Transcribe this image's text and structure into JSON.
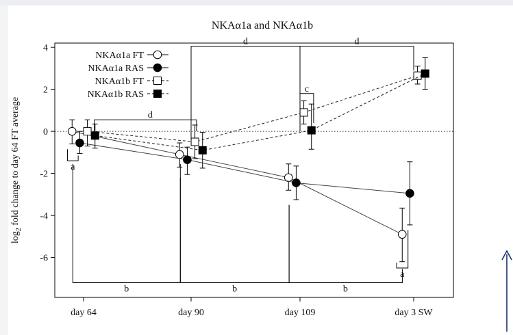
{
  "colors": {
    "background": "#ffffff",
    "ink": "#000000",
    "page_edge": "#eceef1",
    "arrow": "#1a2f6b"
  },
  "chart_data": {
    "type": "line",
    "title": "NKAα1a and NKAα1b",
    "xlabel": "",
    "ylabel": "log2 fold change to day 64 FT average",
    "ylabel_main": "log",
    "ylabel_sub": "2",
    "ylabel_rest": " fold change to day 64 FT average",
    "categories": [
      "day 64",
      "day 90",
      "day 109",
      "day 3 SW"
    ],
    "ylim": [
      -7.9,
      4.2
    ],
    "yticks": [
      4,
      2,
      0,
      -2,
      -4,
      -6
    ],
    "grid": false,
    "reference_line_y": 0,
    "legend_position": "top-left",
    "series": [
      {
        "name": "NKAα1a FT",
        "marker": "circle-open",
        "line": "solid",
        "offset": -0.15,
        "values": [
          0.0,
          -1.1,
          -2.2,
          -4.9
        ],
        "errors": [
          [
            -0.6,
            0.55
          ],
          [
            -1.7,
            -0.55
          ],
          [
            -2.8,
            -1.55
          ],
          [
            -6.2,
            -3.65
          ]
        ]
      },
      {
        "name": "NKAα1a RAS",
        "marker": "circle-filled",
        "line": "solid",
        "offset": -0.05,
        "values": [
          -0.55,
          -1.35,
          -2.45,
          -2.95
        ],
        "errors": [
          [
            -1.05,
            0.0
          ],
          [
            -2.05,
            -0.75
          ],
          [
            -3.25,
            -1.65
          ],
          [
            -4.45,
            -1.45
          ]
        ]
      },
      {
        "name": "NKAα1b FT",
        "marker": "square-open",
        "line": "dashed",
        "offset": 0.05,
        "values": [
          0.0,
          -0.5,
          0.9,
          2.65
        ],
        "errors": [
          [
            -0.7,
            0.55
          ],
          [
            -1.3,
            0.3
          ],
          [
            0.35,
            1.45
          ],
          [
            2.25,
            3.1
          ]
        ]
      },
      {
        "name": "NKAα1b RAS",
        "marker": "square-filled",
        "line": "dashed",
        "offset": 0.15,
        "values": [
          -0.2,
          -0.9,
          0.05,
          2.75
        ],
        "errors": [
          [
            -0.8,
            0.35
          ],
          [
            -1.75,
            -0.05
          ],
          [
            -0.85,
            1.3
          ],
          [
            2.0,
            3.5
          ]
        ]
      }
    ],
    "annotations": [
      {
        "label": "d",
        "kind": "top",
        "x1": 0.1,
        "x2": 1.05,
        "y": 0.55,
        "drop1": 0.0,
        "drop2": 0.0,
        "label_x": 0.62
      },
      {
        "label": "d",
        "kind": "top",
        "x1": 1.0,
        "x2": 2.0,
        "y": 4.05,
        "drop1": -0.4,
        "drop2": 0.0,
        "label_x": 1.5
      },
      {
        "label": "d",
        "kind": "top",
        "x1": 2.0,
        "x2": 3.0,
        "y": 4.05,
        "drop1": 0.0,
        "drop2": 2.9,
        "label_x": 2.5
      },
      {
        "label": "c",
        "kind": "top",
        "x1": 2.0,
        "x2": 2.12,
        "y": 1.8,
        "drop1": 1.5,
        "drop2": 0.4,
        "label_x": 2.06
      },
      {
        "label": "b",
        "kind": "bottom",
        "x1": -0.1,
        "x2": 0.9,
        "y": -7.2,
        "drop1": -1.55,
        "drop2": -2.2,
        "label_x": 0.4
      },
      {
        "label": "b",
        "kind": "bottom",
        "x1": 0.9,
        "x2": 1.9,
        "y": -7.2,
        "drop1": -1.55,
        "drop2": -3.5,
        "label_x": 1.4
      },
      {
        "label": "b",
        "kind": "bottom",
        "x1": 1.9,
        "x2": 2.9,
        "y": -7.2,
        "drop1": -3.5,
        "drop2": -6.55,
        "label_x": 2.4
      },
      {
        "label": "a",
        "kind": "bottom",
        "x1": -0.15,
        "x2": -0.05,
        "y": -1.4,
        "drop1": -0.85,
        "drop2": -1.15,
        "label_x": -0.1
      },
      {
        "label": "a",
        "kind": "bottom",
        "x1": 2.85,
        "x2": 2.95,
        "y": -6.5,
        "drop1": -6.25,
        "drop2": -4.7,
        "label_x": 2.9
      }
    ]
  }
}
